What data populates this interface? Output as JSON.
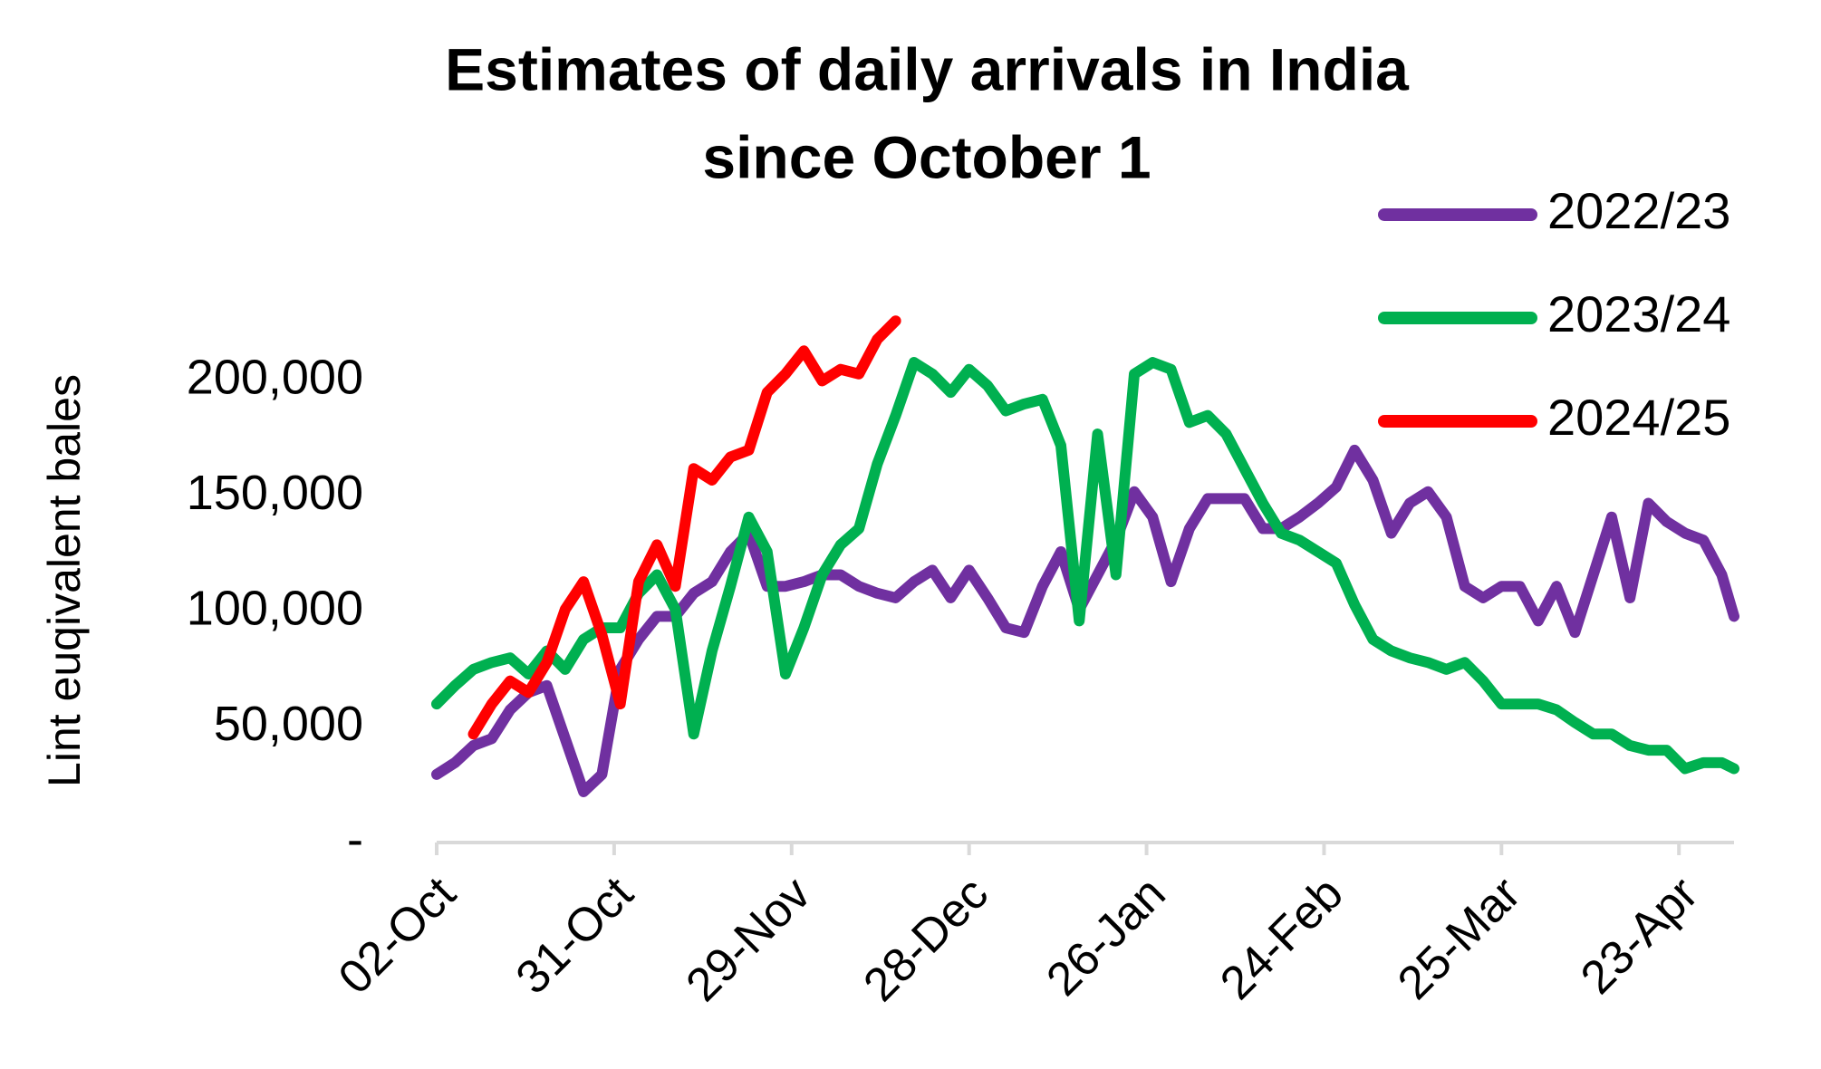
{
  "chart_data": {
    "type": "line",
    "title": "Estimates of daily arrivals in India",
    "subtitle": "since October 1",
    "y_label": "Lint euqivalent bales",
    "legend": "top-right",
    "grid": false,
    "xlim": [
      1,
      213
    ],
    "xticks": [
      {
        "value": 1,
        "label": "02-Oct"
      },
      {
        "value": 30,
        "label": "31-Oct"
      },
      {
        "value": 59,
        "label": "29-Nov"
      },
      {
        "value": 88,
        "label": "28-Dec"
      },
      {
        "value": 117,
        "label": "26-Jan"
      },
      {
        "value": 146,
        "label": "24-Feb"
      },
      {
        "value": 175,
        "label": "25-Mar"
      },
      {
        "value": 204,
        "label": "23-Apr"
      }
    ],
    "ylim": [
      0,
      230000
    ],
    "yticks": [
      {
        "value": 0,
        "label": "-"
      },
      {
        "value": 50000,
        "label": "50,000"
      },
      {
        "value": 100000,
        "label": "100,000"
      },
      {
        "value": 150000,
        "label": "150,000"
      },
      {
        "value": 200000,
        "label": "200,000"
      }
    ],
    "x": [
      1,
      4,
      7,
      10,
      13,
      16,
      19,
      22,
      25,
      28,
      31,
      34,
      37,
      40,
      43,
      46,
      49,
      52,
      55,
      58,
      61,
      64,
      67,
      70,
      73,
      76,
      79,
      82,
      85,
      88,
      91,
      94,
      97,
      100,
      103,
      106,
      109,
      112,
      115,
      118,
      121,
      124,
      127,
      130,
      133,
      136,
      139,
      142,
      145,
      148,
      151,
      154,
      157,
      160,
      163,
      166,
      169,
      172,
      175,
      178,
      181,
      184,
      187,
      190,
      193,
      196,
      199,
      202,
      205,
      208,
      211,
      213
    ],
    "series": [
      {
        "name": "2022/23",
        "color": "#7030a0",
        "values": [
          29500,
          34600,
          42000,
          45000,
          57500,
          65000,
          68000,
          45000,
          22000,
          29500,
          75000,
          88000,
          98000,
          98000,
          108000,
          113000,
          126000,
          134000,
          111000,
          111000,
          113000,
          116000,
          116000,
          111000,
          108000,
          106000,
          113000,
          118000,
          106000,
          118000,
          106000,
          93000,
          91000,
          111000,
          126000,
          101000,
          116000,
          131000,
          152000,
          141000,
          113000,
          136000,
          149000,
          149000,
          149000,
          136000,
          136000,
          141000,
          147000,
          154000,
          170000,
          157000,
          134000,
          147000,
          152000,
          141000,
          111000,
          106000,
          111000,
          111000,
          96000,
          111000,
          91000,
          116000,
          141000,
          106000,
          147000,
          139000,
          134000,
          131000,
          116000,
          98000
        ]
      },
      {
        "name": "2023/24",
        "color": "#00b050",
        "values": [
          60000,
          68000,
          75000,
          78000,
          80000,
          73000,
          83000,
          75000,
          88000,
          93000,
          93000,
          108000,
          116000,
          101000,
          47000,
          83000,
          111000,
          141000,
          126000,
          73000,
          93000,
          116000,
          129000,
          136000,
          164000,
          185000,
          208000,
          203000,
          195000,
          205000,
          198000,
          187000,
          190000,
          192000,
          172000,
          96000,
          177000,
          116000,
          203000,
          208000,
          205000,
          182000,
          185000,
          177000,
          162000,
          147000,
          134000,
          131000,
          126000,
          121000,
          103000,
          88000,
          83000,
          80000,
          78000,
          75000,
          78000,
          70000,
          60000,
          60000,
          60000,
          57500,
          52000,
          47000,
          47000,
          42000,
          40000,
          40000,
          32000,
          34600,
          34600,
          32000
        ]
      },
      {
        "name": "2024/25",
        "color": "#ff0000",
        "values": [
          null,
          null,
          47000,
          60000,
          70000,
          65000,
          78000,
          101000,
          113000,
          90000,
          60000,
          113000,
          129000,
          111000,
          162000,
          157000,
          167000,
          170000,
          195000,
          203000,
          213000,
          200000,
          205000,
          203000,
          218000,
          226000,
          null,
          null,
          null,
          null,
          null,
          null,
          null,
          null,
          null,
          null,
          null,
          null,
          null,
          null,
          null,
          null,
          null,
          null,
          null,
          null,
          null,
          null,
          null,
          null,
          null,
          null,
          null,
          null,
          null,
          null,
          null,
          null,
          null,
          null,
          null,
          null,
          null,
          null,
          null,
          null,
          null,
          null,
          null,
          null,
          null,
          null
        ]
      }
    ]
  }
}
